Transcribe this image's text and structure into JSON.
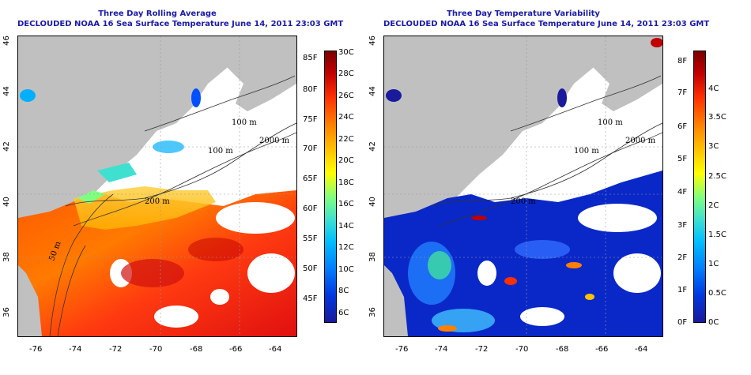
{
  "left": {
    "title_line1": "Three Day Rolling Average",
    "title_line2": "DECLOUDED NOAA 16 Sea Surface Temperature June 14, 2011 23:03 GMT",
    "colorbar": {
      "f_labels": [
        "85F",
        "80F",
        "75F",
        "70F",
        "65F",
        "60F",
        "55F",
        "50F",
        "45F"
      ],
      "c_labels": [
        "30C",
        "28C",
        "26C",
        "24C",
        "22C",
        "20C",
        "18C",
        "16C",
        "14C",
        "12C",
        "10C",
        "8C",
        "6C"
      ]
    }
  },
  "right": {
    "title_line1": "Three Day Temperature Variability",
    "title_line2": "DECLOUDED NOAA 16 Sea Surface Temperature June 14, 2011 23:03 GMT",
    "colorbar": {
      "f_labels": [
        "8F",
        "7F",
        "6F",
        "5F",
        "4F",
        "3F",
        "2F",
        "1F",
        "0F"
      ],
      "c_labels": [
        "4C",
        "3.5C",
        "3C",
        "2.5C",
        "2C",
        "1.5C",
        "1C",
        "0.5C",
        "0C"
      ]
    }
  },
  "axes": {
    "x_ticks": [
      "-76",
      "-74",
      "-72",
      "-70",
      "-68",
      "-66",
      "-64"
    ],
    "y_ticks": [
      "36",
      "38",
      "40",
      "42",
      "44",
      "46"
    ]
  },
  "contour_labels": {
    "c100": "100 m",
    "c200": "200 m",
    "c2000": "2000 m",
    "c50": "50 m"
  },
  "colors": {
    "land": "#c0c0c0",
    "title": "#1a1aa8",
    "sst_ramp": [
      "#1a1a9c",
      "#0050ff",
      "#00b0ff",
      "#40e0d0",
      "#80ff80",
      "#ffff00",
      "#ffc000",
      "#ff8000",
      "#ff3000",
      "#c00000",
      "#7a0000"
    ]
  }
}
